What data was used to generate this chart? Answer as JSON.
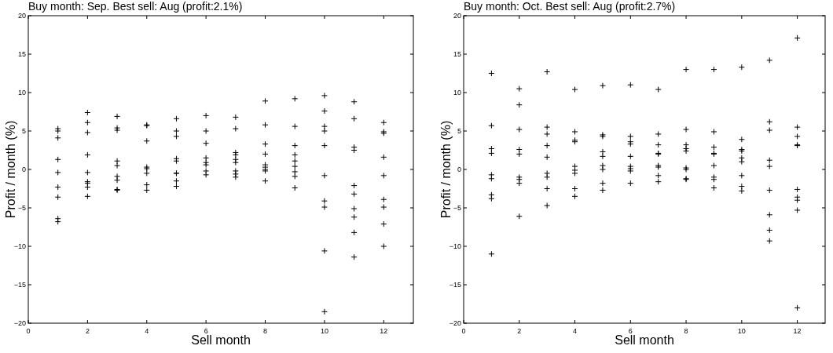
{
  "chart_data": [
    {
      "type": "scatter",
      "title": "Buy month: Sep. Best sell: Aug (profit:2.1%)",
      "xlabel": "Sell month",
      "ylabel": "Profit / month (%)",
      "marker": "cross",
      "xlim": [
        0,
        13
      ],
      "ylim": [
        -20,
        20
      ],
      "xticks": [
        0,
        2,
        4,
        6,
        8,
        10,
        12
      ],
      "yticks": [
        {
          "value": -20,
          "label": "−20"
        },
        {
          "value": -15,
          "label": "−15"
        },
        {
          "value": -10,
          "label": "−10"
        },
        {
          "value": -5,
          "label": "−5"
        },
        0,
        5,
        10,
        15,
        20
      ],
      "series": [
        {
          "color": "#000000",
          "x": [
            1,
            1,
            1,
            1,
            1,
            1,
            1,
            1,
            1,
            2,
            2,
            2,
            2,
            2,
            2,
            2,
            2,
            2,
            3,
            3,
            3,
            3,
            3,
            3,
            3,
            3,
            3,
            4,
            4,
            4,
            4,
            4,
            4,
            4,
            4,
            5,
            5,
            5,
            5,
            5,
            5,
            5,
            5,
            5,
            6,
            6,
            6,
            6,
            6,
            6,
            6,
            6,
            7,
            7,
            7,
            7,
            7,
            7,
            7,
            7,
            7,
            8,
            8,
            8,
            8,
            8,
            8,
            8,
            8,
            8,
            9,
            9,
            9,
            9,
            9,
            9,
            9,
            9,
            9,
            10,
            10,
            10,
            10,
            10,
            10,
            10,
            10,
            10,
            10,
            11,
            11,
            11,
            11,
            11,
            11,
            11,
            11,
            11,
            11,
            12,
            12,
            12,
            12,
            12,
            12,
            12,
            12,
            12
          ],
          "values": [
            5.3,
            5.0,
            4.1,
            1.3,
            -0.4,
            -2.3,
            -3.6,
            -6.4,
            -6.8,
            7.4,
            6.1,
            4.8,
            1.9,
            -0.4,
            -1.6,
            -1.8,
            -2.3,
            -3.5,
            6.9,
            5.4,
            5.1,
            1.1,
            0.5,
            -0.9,
            -1.4,
            -2.6,
            -2.7,
            5.8,
            5.7,
            3.7,
            0.3,
            0.1,
            -0.5,
            -2.0,
            -2.7,
            6.6,
            5.0,
            4.3,
            1.4,
            1.1,
            -0.5,
            -0.5,
            -1.5,
            -2.2,
            7.0,
            5.0,
            3.4,
            1.5,
            0.9,
            0.6,
            -0.2,
            -0.7,
            6.8,
            5.3,
            2.2,
            1.9,
            1.3,
            0.9,
            -0.2,
            -0.6,
            -1.0,
            8.9,
            5.8,
            3.3,
            2.0,
            0.6,
            0.3,
            0.0,
            -0.2,
            -1.5,
            9.2,
            5.6,
            3.1,
            1.9,
            1.1,
            0.4,
            -0.3,
            -0.9,
            -2.4,
            9.6,
            7.6,
            5.6,
            5.0,
            3.1,
            -0.8,
            -4.1,
            -4.9,
            -10.6,
            -18.5,
            8.8,
            6.6,
            2.9,
            2.5,
            -2.1,
            -3.2,
            -5.1,
            -6.2,
            -8.2,
            -11.4,
            6.1,
            4.9,
            4.7,
            1.6,
            -0.8,
            -3.9,
            -4.9,
            -7.1,
            -10.0
          ]
        }
      ]
    },
    {
      "type": "scatter",
      "title": "Buy month: Oct. Best sell: Aug (profit:2.7%)",
      "xlabel": "Sell month",
      "ylabel": "Profit / month (%)",
      "marker": "cross",
      "xlim": [
        0,
        13
      ],
      "ylim": [
        -20,
        20
      ],
      "xticks": [
        0,
        2,
        4,
        6,
        8,
        10,
        12
      ],
      "yticks": [
        {
          "value": -20,
          "label": "−20"
        },
        {
          "value": -15,
          "label": "−15"
        },
        {
          "value": -10,
          "label": "−10"
        },
        {
          "value": -5,
          "label": "−5"
        },
        0,
        5,
        10,
        15,
        20
      ],
      "series": [
        {
          "color": "#000000",
          "x": [
            1,
            1,
            1,
            1,
            1,
            1,
            1,
            1,
            1,
            2,
            2,
            2,
            2,
            2,
            2,
            2,
            2,
            2,
            3,
            3,
            3,
            3,
            3,
            3,
            3,
            3,
            3,
            4,
            4,
            4,
            4,
            4,
            4,
            4,
            4,
            4,
            5,
            5,
            5,
            5,
            5,
            5,
            5,
            5,
            5,
            6,
            6,
            6,
            6,
            6,
            6,
            6,
            6,
            6,
            7,
            7,
            7,
            7,
            7,
            7,
            7,
            7,
            7,
            8,
            8,
            8,
            8,
            8,
            8,
            8,
            8,
            8,
            9,
            9,
            9,
            9,
            9,
            9,
            9,
            9,
            9,
            10,
            10,
            10,
            10,
            10,
            10,
            10,
            10,
            10,
            11,
            11,
            11,
            11,
            11,
            11,
            11,
            11,
            11,
            12,
            12,
            12,
            12,
            12,
            12,
            12,
            12,
            12,
            12
          ],
          "values": [
            12.5,
            5.7,
            2.7,
            2.1,
            -0.7,
            -1.2,
            -3.3,
            -3.8,
            -11.0,
            10.5,
            8.4,
            5.2,
            2.6,
            2.0,
            -1.0,
            -1.3,
            -1.8,
            -6.1,
            12.7,
            5.5,
            4.6,
            3.1,
            1.6,
            -0.5,
            -1.0,
            -2.5,
            -4.7,
            10.4,
            4.9,
            3.8,
            3.6,
            0.4,
            -0.1,
            -0.5,
            -2.5,
            -3.5,
            10.9,
            4.5,
            4.3,
            2.3,
            1.7,
            0.5,
            0.0,
            -1.8,
            -2.7,
            11.0,
            4.3,
            3.6,
            3.3,
            1.7,
            0.4,
            0.1,
            -0.2,
            -1.8,
            10.4,
            4.6,
            3.2,
            2.1,
            2.0,
            0.5,
            0.3,
            -0.8,
            -1.6,
            13.0,
            5.2,
            3.2,
            2.7,
            2.4,
            0.2,
            0.0,
            -1.2,
            -1.3,
            13.0,
            4.9,
            2.9,
            2.1,
            2.0,
            0.5,
            -1.0,
            -1.3,
            -2.4,
            13.3,
            3.9,
            2.6,
            2.4,
            1.5,
            1.0,
            -0.8,
            -2.2,
            -2.8,
            14.2,
            6.2,
            5.1,
            1.2,
            0.4,
            -2.7,
            -5.9,
            -7.9,
            -9.3,
            17.1,
            5.5,
            4.3,
            3.2,
            3.1,
            -2.6,
            -3.6,
            -4.0,
            -5.3,
            -18.0
          ]
        }
      ]
    }
  ]
}
